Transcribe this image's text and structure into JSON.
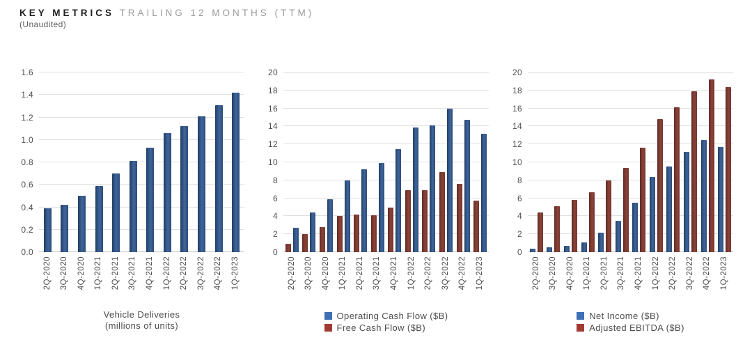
{
  "header": {
    "title_bold": "KEY METRICS",
    "title_rest": "TRAILING 12 MONTHS (TTM)",
    "subtitle": "(Unaudited)"
  },
  "colors": {
    "bar_blue": "#30517f",
    "bar_red": "#7d392f",
    "legend_blue": "#3f6fb5",
    "legend_red": "#a23b33",
    "gridline": "#e0e0e0",
    "axis_text": "#4d4d4d"
  },
  "chart_data": [
    {
      "type": "bar",
      "title": "Vehicle Deliveries",
      "subtitle": "(millions of units)",
      "categories": [
        "2Q-2020",
        "3Q-2020",
        "4Q-2020",
        "1Q-2021",
        "2Q-2021",
        "3Q-2021",
        "4Q-2021",
        "1Q-2022",
        "2Q-2022",
        "3Q-2022",
        "4Q-2022",
        "1Q-2023"
      ],
      "series": [
        {
          "name": "Vehicle Deliveries (millions of units)",
          "color": "#30517f",
          "gradient": [
            "#223f63",
            "#3f659c",
            "#2c4c79"
          ],
          "values": [
            0.39,
            0.42,
            0.5,
            0.59,
            0.7,
            0.81,
            0.93,
            1.06,
            1.12,
            1.21,
            1.31,
            1.42
          ]
        }
      ],
      "ylim": [
        0,
        1.6
      ],
      "ystep": 0.2,
      "ydecimals": 1,
      "grid": true,
      "legend": null
    },
    {
      "type": "bar",
      "title": "",
      "categories": [
        "2Q-2020",
        "3Q-2020",
        "4Q-2020",
        "1Q-2021",
        "2Q-2021",
        "3Q-2021",
        "4Q-2021",
        "1Q-2022",
        "2Q-2022",
        "3Q-2022",
        "4Q-2022",
        "1Q-2023"
      ],
      "series": [
        {
          "name": "Free Cash Flow ($B)",
          "color": "#7d392f",
          "gradient": [
            "#5f2b25",
            "#8c4237",
            "#723630"
          ],
          "values": [
            0.9,
            2.0,
            2.8,
            4.0,
            4.2,
            4.1,
            5.0,
            6.9,
            6.9,
            8.9,
            7.6,
            5.7
          ]
        },
        {
          "name": "Operating Cash Flow ($B)",
          "color": "#30517f",
          "gradient": [
            "#223f63",
            "#3f659c",
            "#2c4c79"
          ],
          "values": [
            2.7,
            4.4,
            5.9,
            8.0,
            9.2,
            9.9,
            11.5,
            13.9,
            14.1,
            16.0,
            14.7,
            13.2
          ]
        }
      ],
      "ylim": [
        0,
        20
      ],
      "ystep": 2,
      "ydecimals": 0,
      "grid": true,
      "legend": [
        {
          "label": "Operating Cash Flow ($B)",
          "color": "#3f6fb5"
        },
        {
          "label": "Free Cash Flow ($B)",
          "color": "#a23b33"
        }
      ]
    },
    {
      "type": "bar",
      "title": "",
      "categories": [
        "2Q-2020",
        "3Q-2020",
        "4Q-2020",
        "1Q-2021",
        "2Q-2021",
        "3Q-2021",
        "4Q-2021",
        "1Q-2022",
        "2Q-2022",
        "3Q-2022",
        "4Q-2022",
        "1Q-2023"
      ],
      "series": [
        {
          "name": "Net Income ($B)",
          "color": "#30517f",
          "gradient": [
            "#223f63",
            "#3f659c",
            "#2c4c79"
          ],
          "values": [
            0.4,
            0.55,
            0.7,
            1.1,
            2.2,
            3.5,
            5.5,
            8.4,
            9.5,
            11.2,
            12.5,
            11.7
          ]
        },
        {
          "name": "Adjusted EBITDA ($B)",
          "color": "#7d392f",
          "gradient": [
            "#5f2b25",
            "#8c4237",
            "#723630"
          ],
          "values": [
            4.4,
            5.1,
            5.8,
            6.7,
            8.0,
            9.4,
            11.6,
            14.8,
            16.1,
            17.9,
            19.2,
            18.4
          ]
        }
      ],
      "ylim": [
        0,
        20
      ],
      "ystep": 2,
      "ydecimals": 0,
      "grid": true,
      "legend": [
        {
          "label": "Net Income ($B)",
          "color": "#3f6fb5"
        },
        {
          "label": "Adjusted EBITDA ($B)",
          "color": "#a23b33"
        }
      ]
    }
  ]
}
